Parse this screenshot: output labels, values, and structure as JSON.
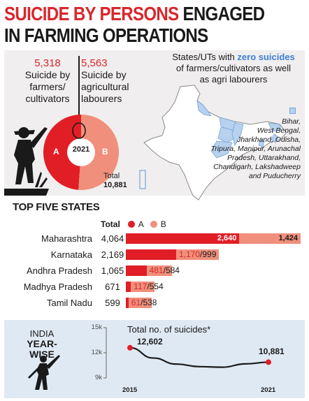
{
  "headline": {
    "line1_red": "SUICIDE BY PERSONS",
    "line1_dark": "ENGAGED",
    "line2_dark": "IN FARMING OPERATIONS"
  },
  "summary": {
    "farmers_value": "5,318",
    "farmers_label_1": "Suicide by",
    "farmers_label_2": "farmers/",
    "farmers_label_3": "cultivators",
    "labourers_value": "5,563",
    "labourers_label_1": "Suicide by",
    "labourers_label_2": "agricultural",
    "labourers_label_3": "labourers",
    "donut_year": "2021",
    "seg_a": "A",
    "seg_b": "B",
    "total_label": "Total",
    "total_value": "10,881"
  },
  "zero_suicides": {
    "title_pre": "States/UTs with ",
    "title_highlight": "zero suicides",
    "title_line2": "of farmers/cultivators as well",
    "title_line3": "as agri labourers",
    "states": [
      "Bihar,",
      "West Bengal,",
      "Jharkhand, Odisha,",
      "Tripura, Manipur, Arunachal",
      "Pradesh, Uttarakhand,",
      "Chandigarh, Lakshadweep",
      "and Puducherry"
    ]
  },
  "top_five": {
    "title": "TOP FIVE STATES",
    "total_header": "Total",
    "legend_a": "A",
    "legend_b": "B"
  },
  "year_wise": {
    "title_1": "INDIA",
    "title_2": "YEAR-WISE",
    "chart_title": "Total no. of suicides*"
  },
  "colors": {
    "red": "#e11e26",
    "salmon": "#ef8f7c",
    "blue_highlight": "#3d7fd6",
    "panel_grey": "#f0eeee",
    "panel_blue": "#dfe9f4"
  },
  "chart_data": [
    {
      "type": "pie",
      "title": "",
      "categories": [
        "A",
        "B"
      ],
      "values": [
        5318,
        5563
      ],
      "total": 10881
    },
    {
      "type": "bar",
      "title": "TOP FIVE STATES",
      "stacked": true,
      "categories": [
        "Maharashtra",
        "Karnataka",
        "Andhra Pradesh",
        "Madhya Pradesh",
        "Tamil Nadu"
      ],
      "totals": [
        4064,
        2169,
        1065,
        671,
        599
      ],
      "totals_text": [
        "4,064",
        "2,169",
        "1,065",
        "671",
        "599"
      ],
      "series": [
        {
          "name": "A",
          "values": [
            2640,
            1170,
            481,
            117,
            61
          ],
          "labels": [
            "2,640",
            "1,170",
            "481",
            "117",
            "61"
          ]
        },
        {
          "name": "B",
          "values": [
            1424,
            999,
            584,
            554,
            538
          ],
          "labels": [
            "1,424",
            "999",
            "584",
            "554",
            "538"
          ]
        }
      ]
    },
    {
      "type": "line",
      "title": "Total no. of suicides*",
      "x": [
        2015,
        2016,
        2017,
        2018,
        2019,
        2020,
        2021
      ],
      "xticks": [
        "2015",
        "2021"
      ],
      "values": [
        12602,
        11379,
        10655,
        10349,
        10281,
        10677,
        10881
      ],
      "labels": {
        "first": "12,602",
        "last": "10,881"
      },
      "yticks": [
        "15k",
        "12k",
        "9k"
      ],
      "ylim": [
        9000,
        15000
      ]
    }
  ]
}
